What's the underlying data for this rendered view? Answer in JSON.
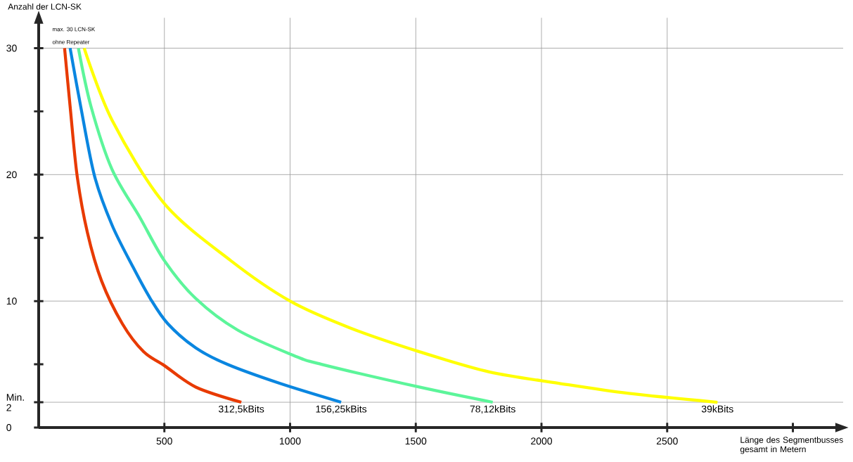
{
  "chart_data": {
    "type": "line",
    "xlabel": "Länge des Segmentbusses gesamt in Metern",
    "ylabel": "Anzahl der LCN-SK",
    "annotations": [
      "max. 30 LCN-SK",
      "ohne Repeater"
    ],
    "xlim": [
      0,
      3200
    ],
    "ylim": [
      0,
      32.4
    ],
    "xticks": [
      500,
      1000,
      1500,
      2000,
      2500,
      {
        "value": 3000,
        "label": null
      }
    ],
    "yticks": [
      {
        "value": 0,
        "label": "0"
      },
      {
        "value": 2,
        "label": "Min. 2"
      },
      {
        "value": 5,
        "label": null
      },
      10,
      {
        "value": 15,
        "label": null
      },
      20,
      {
        "value": 25,
        "label": null
      },
      30
    ],
    "grid": true,
    "marker": "none",
    "line_style": "solid",
    "series": [
      {
        "name": "312,5kBits",
        "color": "#e83a00",
        "x": [
          103,
          125,
          153,
          194,
          250,
          333,
          417,
          500,
          625,
          806
        ],
        "values": [
          30,
          25.4,
          19.9,
          15.4,
          11.6,
          8.2,
          6,
          4.9,
          3.2,
          2
        ]
      },
      {
        "name": "156,25kBits",
        "color": "#0a86e0",
        "x": [
          125,
          167,
          222,
          292,
          375,
          444,
          514,
          625,
          750,
          958,
          1203
        ],
        "values": [
          30,
          25.4,
          19.9,
          16,
          12.7,
          10.2,
          8.2,
          6.3,
          5,
          3.5,
          2
        ]
      },
      {
        "name": "78,12kBits",
        "color": "#5cf59a",
        "x": [
          158,
          208,
          292,
          403,
          500,
          625,
          792,
          1014,
          1125,
          1514,
          1806
        ],
        "values": [
          30,
          25.4,
          20.4,
          16.6,
          13.2,
          10.2,
          7.7,
          5.7,
          5,
          3.2,
          2
        ]
      },
      {
        "name": "39kBits",
        "color": "#ffff00",
        "x": [
          181,
          292,
          500,
          764,
          1000,
          1236,
          1514,
          1792,
          2069,
          2347,
          2700
        ],
        "values": [
          30,
          24.3,
          17.7,
          13.2,
          10,
          7.9,
          6,
          4.4,
          3.5,
          2.7,
          2
        ]
      }
    ]
  }
}
